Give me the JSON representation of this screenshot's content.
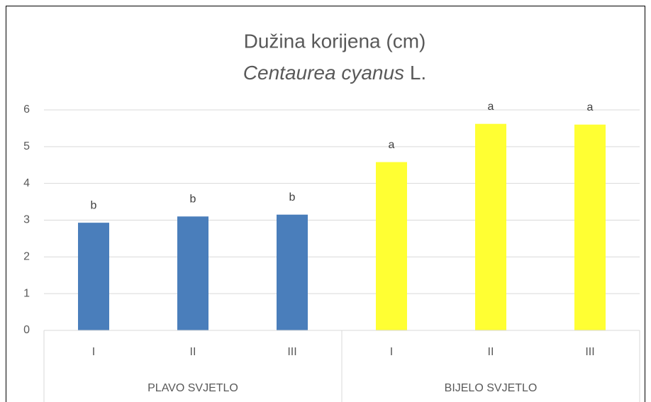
{
  "chart_data": {
    "type": "bar",
    "title": "Dužina korijena (cm)",
    "subtitle": {
      "italic": "Centaurea cyanus",
      "text": "L."
    },
    "groups": [
      {
        "label": "PLAVO SVJETLO",
        "categories": [
          "I",
          "II",
          "III"
        ]
      },
      {
        "label": "BIJELO SVJETLO",
        "categories": [
          "I",
          "II",
          "III"
        ]
      }
    ],
    "values": [
      2.93,
      3.1,
      3.15,
      4.58,
      5.62,
      5.6
    ],
    "colors": [
      "#4a7ebb",
      "#4a7ebb",
      "#4a7ebb",
      "#ffff33",
      "#ffff33",
      "#ffff33"
    ],
    "annotations": [
      "b",
      "b",
      "b",
      "a",
      "a",
      "a"
    ],
    "ylim": [
      0,
      6
    ],
    "yticks": [
      0,
      1,
      2,
      3,
      4,
      5,
      6
    ],
    "grid": true
  }
}
